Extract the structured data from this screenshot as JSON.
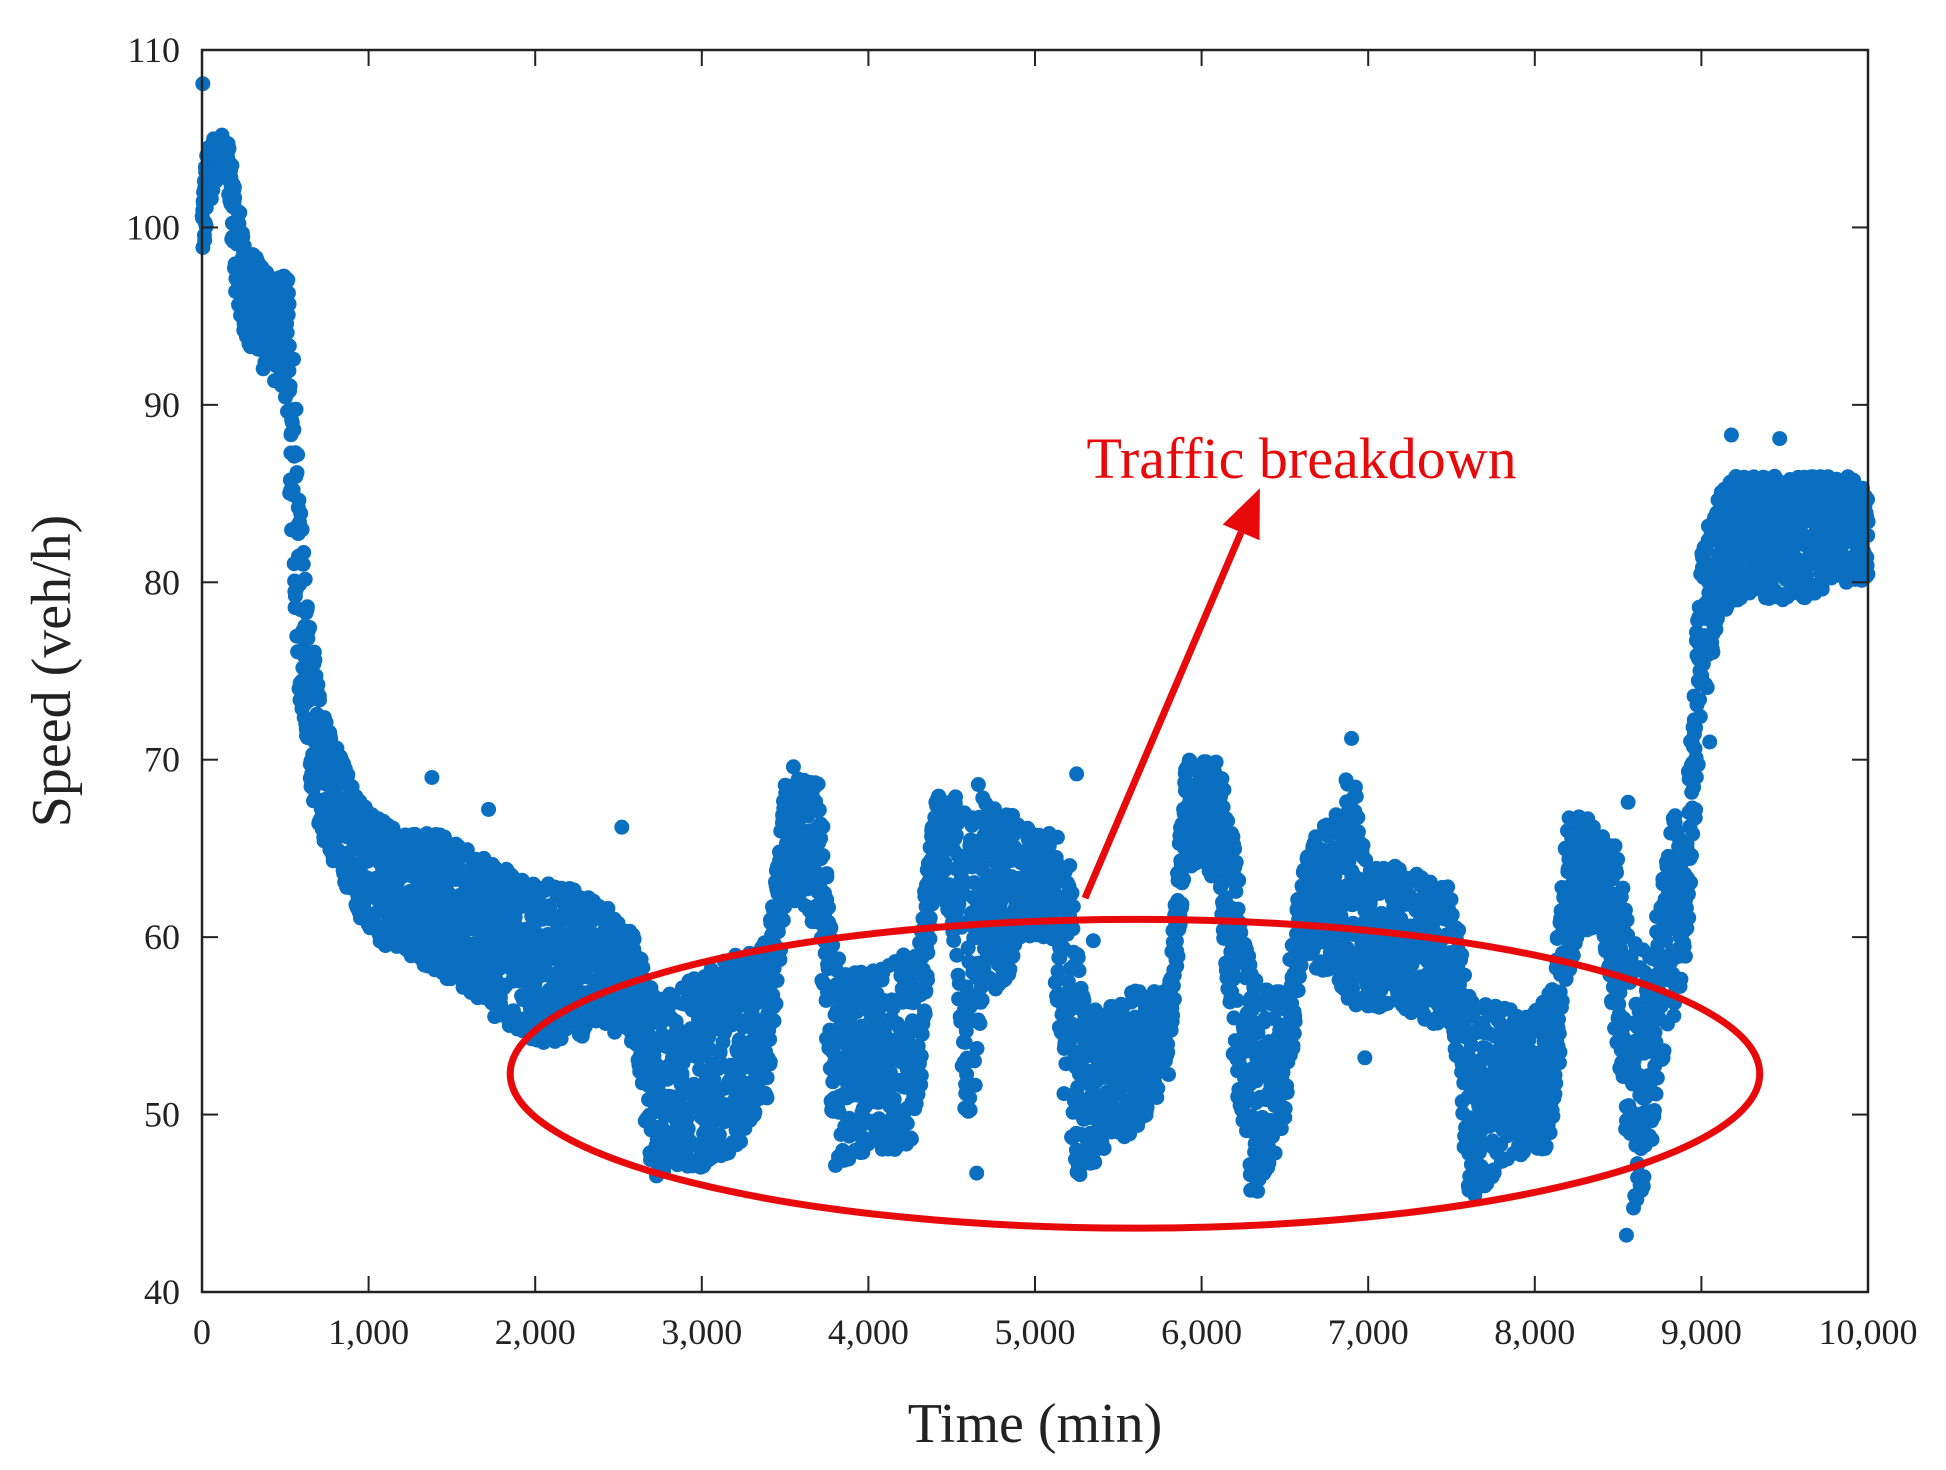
{
  "colors": {
    "series": "#0a6fc0",
    "annotation": "#e8090b",
    "axis": "#222222",
    "background": "#ffffff"
  },
  "chart_data": {
    "type": "scatter",
    "title": "",
    "xlabel": "Time (min)",
    "ylabel": "Speed (veh/h)",
    "xlim": [
      0,
      10000
    ],
    "ylim": [
      40,
      110
    ],
    "xticks": [
      0,
      1000,
      2000,
      3000,
      4000,
      5000,
      6000,
      7000,
      8000,
      9000,
      10000
    ],
    "xtick_labels": [
      "0",
      "1,000",
      "2,000",
      "3,000",
      "4,000",
      "5,000",
      "6,000",
      "7,000",
      "8,000",
      "9,000",
      "10,000"
    ],
    "yticks": [
      40,
      50,
      60,
      70,
      80,
      90,
      100,
      110
    ],
    "ytick_labels": [
      "40",
      "50",
      "60",
      "70",
      "80",
      "90",
      "100",
      "110"
    ],
    "grid": false,
    "series": [
      {
        "name": "Speed",
        "marker": "filled-circle",
        "envelope": {
          "x": [
            0,
            20,
            60,
            100,
            150,
            200,
            250,
            300,
            350,
            400,
            450,
            500,
            540,
            580,
            620,
            700,
            800,
            900,
            1000,
            1200,
            1400,
            1600,
            1800,
            2000,
            2200,
            2400,
            2600,
            2700,
            2800,
            3000,
            3200,
            3400,
            3500,
            3600,
            3700,
            3800,
            4000,
            4200,
            4300,
            4400,
            4500,
            4600,
            4700,
            4800,
            4900,
            5000,
            5100,
            5200,
            5300,
            5400,
            5600,
            5800,
            5900,
            6000,
            6100,
            6200,
            6300,
            6400,
            6500,
            6600,
            6700,
            6800,
            6900,
            7000,
            7200,
            7400,
            7500,
            7600,
            7800,
            8000,
            8100,
            8200,
            8300,
            8400,
            8500,
            8600,
            8700,
            8800,
            8850,
            8900,
            9000,
            9100,
            9200,
            9400,
            9600,
            9800,
            9900,
            10000
          ],
          "low": [
            98,
            99,
            102,
            103,
            103,
            96,
            94,
            93,
            92,
            92,
            91,
            90,
            82,
            74,
            70,
            66,
            64,
            62,
            60,
            59,
            58,
            57,
            55,
            54,
            54,
            55,
            54,
            46,
            47,
            47,
            48,
            51,
            62,
            62,
            60,
            47,
            48,
            48,
            49,
            63,
            61,
            47,
            58,
            56,
            60,
            60,
            60,
            47,
            46,
            48,
            49,
            52,
            64,
            64,
            63,
            52,
            45,
            47,
            49,
            59,
            58,
            58,
            56,
            56,
            56,
            55,
            55,
            45,
            47,
            48,
            48,
            58,
            60,
            61,
            53,
            44,
            48,
            55,
            55,
            58,
            72,
            78,
            79,
            79,
            79,
            80,
            80,
            80
          ],
          "high": [
            102,
            104,
            105,
            105,
            105,
            103,
            99,
            99,
            98,
            98,
            97,
            98,
            96,
            88,
            80,
            74,
            71,
            69,
            67,
            66,
            66,
            65,
            64,
            63,
            63,
            62,
            60,
            57,
            57,
            58,
            59,
            60,
            69,
            69,
            69,
            59,
            58,
            59,
            60,
            68,
            68,
            68,
            68,
            67,
            67,
            66,
            66,
            65,
            56,
            56,
            57,
            57,
            70,
            70,
            70,
            65,
            58,
            57,
            57,
            64,
            66,
            67,
            70,
            64,
            64,
            63,
            63,
            57,
            56,
            56,
            57,
            67,
            67,
            66,
            65,
            60,
            59,
            67,
            67,
            66,
            82,
            85,
            86,
            86,
            86,
            86,
            86,
            85
          ]
        },
        "outliers": [
          [
            5,
            108.1
          ],
          [
            40,
            104.5
          ],
          [
            120,
            105.2
          ],
          [
            2520,
            66.2
          ],
          [
            1380,
            69.0
          ],
          [
            1720,
            67.2
          ],
          [
            3550,
            69.6
          ],
          [
            4650,
            46.7
          ],
          [
            4660,
            68.6
          ],
          [
            6980,
            53.2
          ],
          [
            6900,
            71.2
          ],
          [
            5250,
            69.2
          ],
          [
            5350,
            59.8
          ],
          [
            5200,
            57.5
          ],
          [
            8550,
            43.2
          ],
          [
            8560,
            67.6
          ],
          [
            9050,
            71.0
          ],
          [
            9470,
            88.1
          ],
          [
            9180,
            88.3
          ]
        ]
      }
    ],
    "annotations": [
      {
        "type": "ellipse",
        "label": "Traffic breakdown",
        "center_data": [
          5600,
          52.3
        ],
        "semi_axis_x_data": 3750,
        "semi_axis_y_data": 8.7
      },
      {
        "type": "arrow",
        "from_data": [
          5300,
          62.2
        ],
        "to_data": [
          6350,
          85.3
        ]
      }
    ]
  }
}
